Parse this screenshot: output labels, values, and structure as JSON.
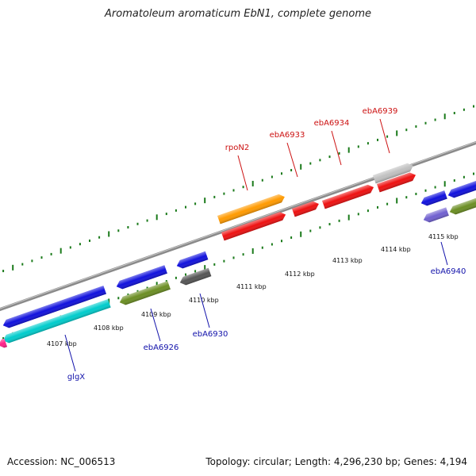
{
  "title": "Aromatoleum aromaticum EbN1, complete genome",
  "footer": {
    "accession": "Accession: NC_006513",
    "stats": "Topology: circular; Length: 4,296,230 bp; Genes: 4,194"
  },
  "colors": {
    "backbone": "#8a8a8a",
    "ticks": "#1a7a1a",
    "label_top": "#cc1111",
    "label_bottom": "#1111aa"
  },
  "kbp_labels": [
    "4107 kbp",
    "4108 kbp",
    "4109 kbp",
    "4110 kbp",
    "4111 kbp",
    "4112 kbp",
    "4113 kbp",
    "4114 kbp",
    "4115 kbp"
  ],
  "gene_labels": [
    {
      "name": "rpoN2",
      "side": "top"
    },
    {
      "name": "ebA6933",
      "side": "top"
    },
    {
      "name": "ebA6934",
      "side": "top"
    },
    {
      "name": "ebA6939",
      "side": "top"
    },
    {
      "name": "glgX",
      "side": "bottom"
    },
    {
      "name": "ebA6926",
      "side": "bottom"
    },
    {
      "name": "ebA6930",
      "side": "bottom"
    },
    {
      "name": "ebA6940",
      "side": "bottom"
    }
  ],
  "features": [
    {
      "color": "#ff9a00",
      "strand": "forward"
    },
    {
      "color": "#ee1111",
      "strand": "forward"
    },
    {
      "color": "#ee1111",
      "strand": "forward"
    },
    {
      "color": "#ee1111",
      "strand": "forward"
    },
    {
      "color": "#ee1111",
      "strand": "forward"
    },
    {
      "color": "#c0c0c0",
      "strand": "forward"
    },
    {
      "color": "#1111dd",
      "strand": "reverse"
    },
    {
      "color": "#1111dd",
      "strand": "reverse"
    },
    {
      "color": "#1111dd",
      "strand": "reverse"
    },
    {
      "color": "#1111dd",
      "strand": "reverse"
    },
    {
      "color": "#1111dd",
      "strand": "reverse"
    },
    {
      "color": "#00cccc",
      "strand": "reverse"
    },
    {
      "color": "#6b8e23",
      "strand": "reverse"
    },
    {
      "color": "#555555",
      "strand": "reverse"
    },
    {
      "color": "#7060d0",
      "strand": "reverse"
    },
    {
      "color": "#6b8e23",
      "strand": "reverse"
    },
    {
      "color": "#ff2288",
      "strand": "reverse"
    }
  ]
}
